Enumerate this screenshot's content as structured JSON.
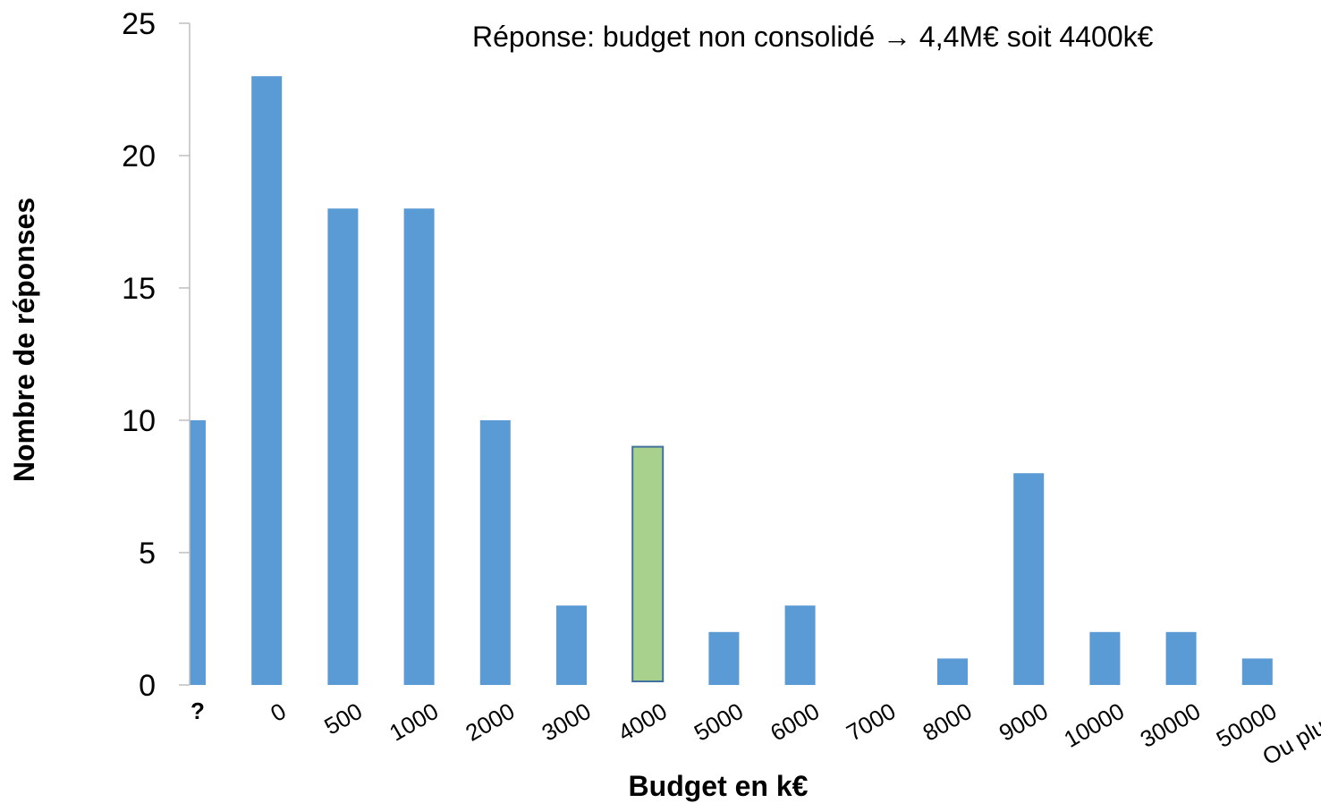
{
  "chart_data": {
    "type": "bar",
    "categories": [
      "?",
      "0",
      "500",
      "1000",
      "2000",
      "3000",
      "4000",
      "5000",
      "6000",
      "7000",
      "8000",
      "9000",
      "10000",
      "30000",
      "50000",
      "Ou plus..."
    ],
    "series": [
      {
        "values": [
          10,
          23,
          18,
          18,
          10,
          3,
          9,
          2,
          3,
          0,
          1,
          8,
          2,
          2,
          1,
          null
        ]
      }
    ],
    "highlight_category": "4000",
    "xlabel": "Budget en k€",
    "ylabel": "Nombre de réponses",
    "ylim": [
      0,
      25
    ],
    "yticks": [
      0,
      5,
      10,
      15,
      20,
      25
    ],
    "grid": false,
    "legend": "none",
    "annotation": "Réponse: budget non consolidé → 4,4M€ soit 4400k€",
    "colors": {
      "bar": "#5b9bd5",
      "highlight": "#a9d18e",
      "highlight_border": "#41719c",
      "axis": "#bfbfbf"
    }
  }
}
